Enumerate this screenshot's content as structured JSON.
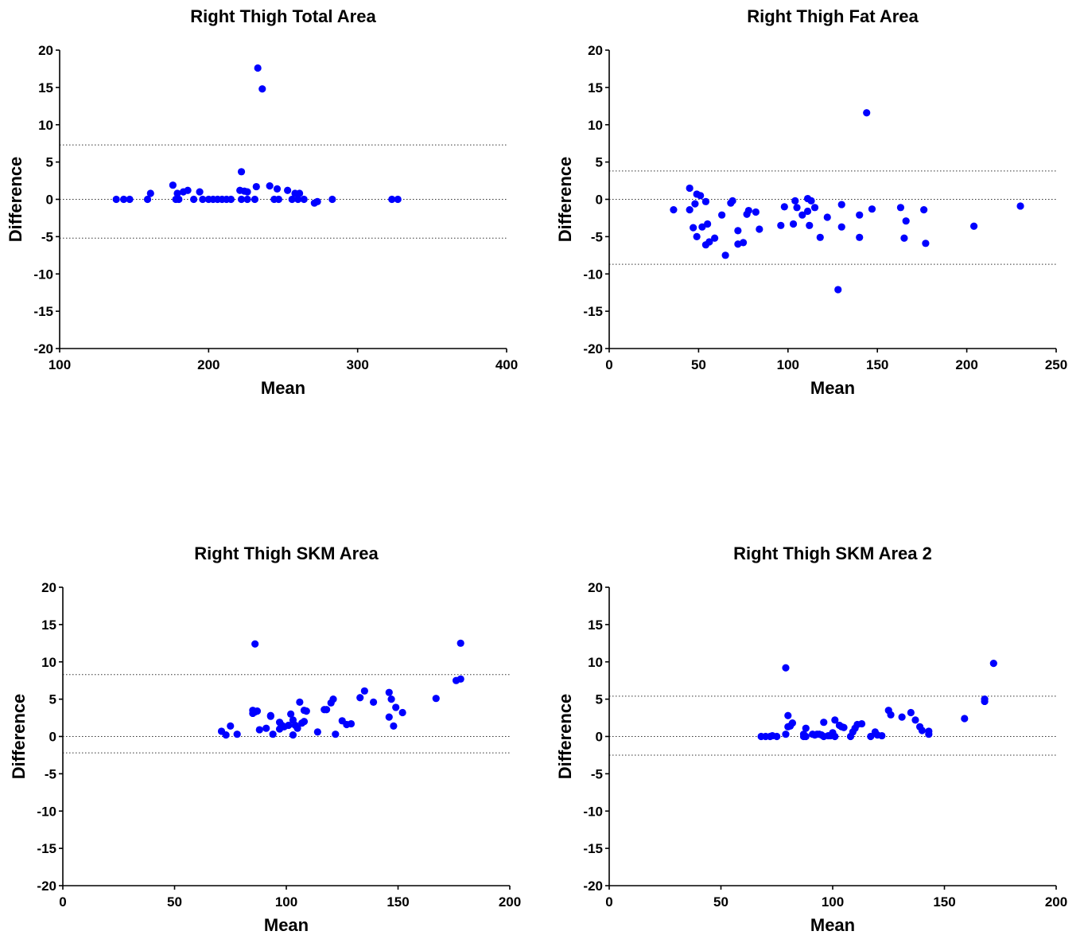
{
  "chart_data": [
    {
      "type": "scatter",
      "title": "Right Thigh Total Area",
      "xlabel": "Mean",
      "ylabel": "Difference",
      "xlim": [
        100,
        400
      ],
      "ylim": [
        -20,
        20
      ],
      "xticks": [
        "100",
        "200",
        "300",
        "400"
      ],
      "yticks": [
        "20",
        "15",
        "10",
        "5",
        "0",
        "-5",
        "-10",
        "-15",
        "-20"
      ],
      "grid": false,
      "reference_lines": [
        7.3,
        0,
        -5.2
      ],
      "marker_color": "#0000ff",
      "points": [
        [
          138,
          0
        ],
        [
          143,
          0
        ],
        [
          147,
          0
        ],
        [
          159,
          0
        ],
        [
          161,
          0.8
        ],
        [
          176,
          1.9
        ],
        [
          178,
          0
        ],
        [
          179,
          0.8
        ],
        [
          180,
          0
        ],
        [
          183,
          1.0
        ],
        [
          186,
          1.2
        ],
        [
          190,
          0
        ],
        [
          194,
          1.0
        ],
        [
          196,
          0
        ],
        [
          200,
          0
        ],
        [
          203,
          0
        ],
        [
          206,
          0
        ],
        [
          209,
          0
        ],
        [
          212,
          0
        ],
        [
          215,
          0
        ],
        [
          221,
          1.2
        ],
        [
          222,
          3.7
        ],
        [
          222,
          0
        ],
        [
          224,
          1.1
        ],
        [
          226,
          1.0
        ],
        [
          226,
          0
        ],
        [
          231,
          0
        ],
        [
          232,
          1.7
        ],
        [
          233,
          17.6
        ],
        [
          236,
          14.8
        ],
        [
          241,
          1.8
        ],
        [
          244,
          0
        ],
        [
          246,
          1.4
        ],
        [
          247,
          0
        ],
        [
          253,
          1.2
        ],
        [
          256,
          0
        ],
        [
          258,
          0.8
        ],
        [
          260,
          0
        ],
        [
          261,
          0.8
        ],
        [
          264,
          0
        ],
        [
          271,
          -0.5
        ],
        [
          273,
          -0.3
        ],
        [
          283,
          0
        ],
        [
          323,
          0
        ],
        [
          327,
          0
        ]
      ]
    },
    {
      "type": "scatter",
      "title": "Right Thigh Fat Area",
      "xlabel": "Mean",
      "ylabel": "Difference",
      "xlim": [
        0,
        250
      ],
      "ylim": [
        -20,
        20
      ],
      "xticks": [
        "0",
        "50",
        "100",
        "150",
        "200",
        "250"
      ],
      "yticks": [
        "20",
        "15",
        "10",
        "5",
        "0",
        "-5",
        "-10",
        "-15",
        "-20"
      ],
      "grid": false,
      "reference_lines": [
        3.8,
        0,
        -8.7
      ],
      "marker_color": "#0000ff",
      "points": [
        [
          36,
          -1.4
        ],
        [
          45,
          -1.4
        ],
        [
          45,
          1.5
        ],
        [
          47,
          -3.8
        ],
        [
          48,
          -0.6
        ],
        [
          49,
          0.7
        ],
        [
          49,
          -5.0
        ],
        [
          51,
          0.5
        ],
        [
          52,
          -3.7
        ],
        [
          54,
          -6.1
        ],
        [
          54,
          -0.3
        ],
        [
          55,
          -3.3
        ],
        [
          56,
          -5.7
        ],
        [
          59,
          -5.2
        ],
        [
          63,
          -2.1
        ],
        [
          65,
          -7.5
        ],
        [
          68,
          -0.5
        ],
        [
          69,
          -0.2
        ],
        [
          72,
          -4.2
        ],
        [
          72,
          -6.0
        ],
        [
          75,
          -5.8
        ],
        [
          77,
          -2.0
        ],
        [
          78,
          -1.5
        ],
        [
          82,
          -1.7
        ],
        [
          84,
          -4.0
        ],
        [
          96,
          -3.5
        ],
        [
          98,
          -1.0
        ],
        [
          103,
          -3.3
        ],
        [
          104,
          -0.2
        ],
        [
          105,
          -1.1
        ],
        [
          108,
          -2.1
        ],
        [
          111,
          -1.6
        ],
        [
          111,
          0.1
        ],
        [
          112,
          -3.5
        ],
        [
          113,
          -0.2
        ],
        [
          115,
          -1.1
        ],
        [
          118,
          -5.1
        ],
        [
          122,
          -2.4
        ],
        [
          128,
          -12.1
        ],
        [
          130,
          -0.7
        ],
        [
          130,
          -3.7
        ],
        [
          140,
          -2.1
        ],
        [
          140,
          -5.1
        ],
        [
          144,
          11.6
        ],
        [
          147,
          -1.3
        ],
        [
          163,
          -1.1
        ],
        [
          165,
          -5.2
        ],
        [
          166,
          -2.9
        ],
        [
          176,
          -1.4
        ],
        [
          177,
          -5.9
        ],
        [
          204,
          -3.6
        ],
        [
          230,
          -0.9
        ]
      ]
    },
    {
      "type": "scatter",
      "title": "Right Thigh SKM Area",
      "xlabel": "Mean",
      "ylabel": "Difference",
      "xlim": [
        0,
        200
      ],
      "ylim": [
        -20,
        20
      ],
      "xticks": [
        "0",
        "50",
        "100",
        "150",
        "200"
      ],
      "yticks": [
        "20",
        "15",
        "10",
        "5",
        "0",
        "-5",
        "-10",
        "-15",
        "-20"
      ],
      "grid": false,
      "reference_lines": [
        8.3,
        0,
        -2.2
      ],
      "marker_color": "#0000ff",
      "points": [
        [
          71,
          0.7
        ],
        [
          73,
          0.2
        ],
        [
          75,
          1.4
        ],
        [
          78,
          0.3
        ],
        [
          85,
          3.5
        ],
        [
          85,
          3.1
        ],
        [
          86,
          12.4
        ],
        [
          86,
          3.3
        ],
        [
          87,
          3.4
        ],
        [
          88,
          0.9
        ],
        [
          91,
          1.1
        ],
        [
          93,
          2.7
        ],
        [
          93,
          2.8
        ],
        [
          94,
          0.3
        ],
        [
          97,
          1.9
        ],
        [
          97,
          1.0
        ],
        [
          98,
          1.5
        ],
        [
          99,
          1.3
        ],
        [
          101,
          1.5
        ],
        [
          102,
          3.0
        ],
        [
          103,
          2.2
        ],
        [
          103,
          0.2
        ],
        [
          104,
          1.5
        ],
        [
          105,
          1.1
        ],
        [
          106,
          4.6
        ],
        [
          107,
          1.8
        ],
        [
          108,
          2.0
        ],
        [
          108,
          3.5
        ],
        [
          109,
          3.4
        ],
        [
          114,
          0.6
        ],
        [
          117,
          3.6
        ],
        [
          118,
          3.6
        ],
        [
          120,
          4.5
        ],
        [
          121,
          5.0
        ],
        [
          122,
          0.3
        ],
        [
          125,
          2.1
        ],
        [
          127,
          1.6
        ],
        [
          129,
          1.7
        ],
        [
          133,
          5.2
        ],
        [
          135,
          6.1
        ],
        [
          139,
          4.6
        ],
        [
          146,
          5.9
        ],
        [
          146,
          2.6
        ],
        [
          147,
          5.0
        ],
        [
          148,
          1.4
        ],
        [
          149,
          3.9
        ],
        [
          152,
          3.2
        ],
        [
          167,
          5.1
        ],
        [
          176,
          7.5
        ],
        [
          178,
          7.7
        ],
        [
          178,
          12.5
        ]
      ]
    },
    {
      "type": "scatter",
      "title": "Right Thigh SKM Area 2",
      "xlabel": "Mean",
      "ylabel": "Difference",
      "xlim": [
        0,
        200
      ],
      "ylim": [
        -20,
        20
      ],
      "xticks": [
        "0",
        "50",
        "100",
        "150",
        "200"
      ],
      "yticks": [
        "20",
        "15",
        "10",
        "5",
        "0",
        "-5",
        "-10",
        "-15",
        "-20"
      ],
      "grid": false,
      "reference_lines": [
        5.4,
        0,
        -2.5
      ],
      "marker_color": "#0000ff",
      "points": [
        [
          68,
          0
        ],
        [
          70,
          0
        ],
        [
          72,
          0
        ],
        [
          73,
          0.1
        ],
        [
          75,
          0
        ],
        [
          79,
          0.3
        ],
        [
          79,
          9.2
        ],
        [
          80,
          2.8
        ],
        [
          80,
          1.3
        ],
        [
          81,
          1.4
        ],
        [
          82,
          1.8
        ],
        [
          87,
          0
        ],
        [
          87,
          0.3
        ],
        [
          88,
          1.1
        ],
        [
          88,
          0
        ],
        [
          91,
          0.3
        ],
        [
          92,
          0.2
        ],
        [
          93,
          0.3
        ],
        [
          94,
          0.3
        ],
        [
          95,
          0.2
        ],
        [
          96,
          0
        ],
        [
          96,
          1.9
        ],
        [
          98,
          0.1
        ],
        [
          99,
          0.1
        ],
        [
          100,
          0.5
        ],
        [
          101,
          2.2
        ],
        [
          101,
          0
        ],
        [
          103,
          1.5
        ],
        [
          104,
          1.3
        ],
        [
          105,
          1.2
        ],
        [
          108,
          0
        ],
        [
          109,
          0.6
        ],
        [
          110,
          1.1
        ],
        [
          111,
          1.6
        ],
        [
          113,
          1.7
        ],
        [
          117,
          0
        ],
        [
          119,
          0.6
        ],
        [
          120,
          0.2
        ],
        [
          122,
          0.1
        ],
        [
          125,
          3.5
        ],
        [
          126,
          2.9
        ],
        [
          131,
          2.6
        ],
        [
          135,
          3.2
        ],
        [
          137,
          2.2
        ],
        [
          139,
          1.3
        ],
        [
          140,
          0.8
        ],
        [
          143,
          0.7
        ],
        [
          143,
          0.3
        ],
        [
          159,
          2.4
        ],
        [
          168,
          4.7
        ],
        [
          168,
          5.0
        ],
        [
          172,
          9.8
        ]
      ]
    }
  ]
}
